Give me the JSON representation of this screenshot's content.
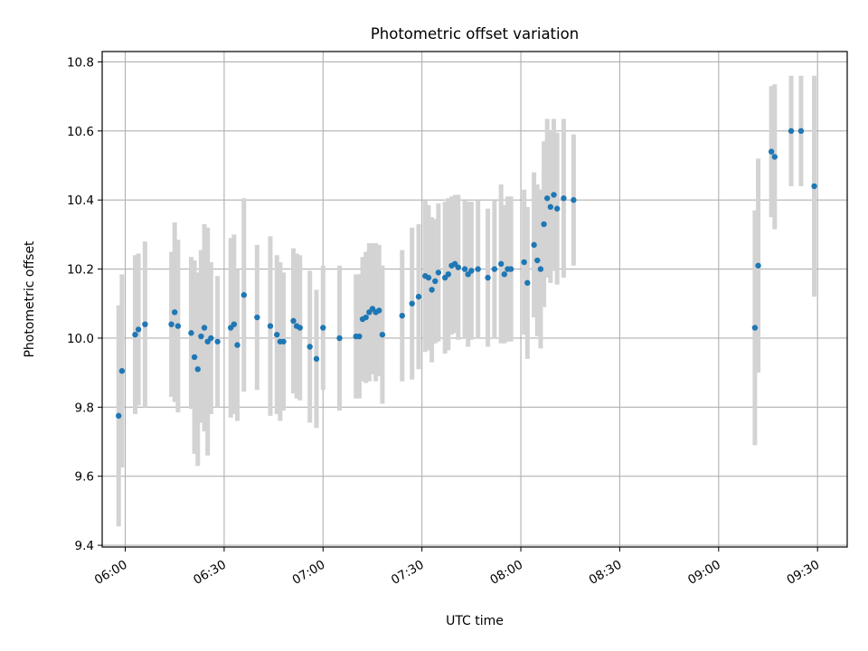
{
  "chart_data": {
    "type": "scatter",
    "title": "Photometric offset variation",
    "xlabel": "UTC time",
    "ylabel": "Photometric offset",
    "grid": true,
    "x_axis": {
      "range": [
        "05:53",
        "09:39"
      ],
      "ticks": [
        "06:00",
        "06:30",
        "07:00",
        "07:30",
        "08:00",
        "08:30",
        "09:00",
        "09:30"
      ]
    },
    "y_axis": {
      "range": [
        9.395,
        10.83
      ],
      "ticks": [
        9.4,
        9.6,
        9.8,
        10.0,
        10.2,
        10.4,
        10.6,
        10.8
      ],
      "tick_labels": [
        "9.4",
        "9.6",
        "9.8",
        "10.0",
        "10.2",
        "10.4",
        "10.6",
        "10.8"
      ]
    },
    "colors": {
      "points": "#1f77b4",
      "errorbars": "#d3d3d3",
      "grid": "#b0b0b0"
    },
    "series": [
      {
        "points": [
          {
            "x": "05:58:00",
            "y": 9.775,
            "err": 0.32
          },
          {
            "x": "05:59:00",
            "y": 9.905,
            "err": 0.28
          },
          {
            "x": "06:03:00",
            "y": 10.01,
            "err": 0.23
          },
          {
            "x": "06:04:00",
            "y": 10.025,
            "err": 0.22
          },
          {
            "x": "06:06:00",
            "y": 10.04,
            "err": 0.24
          },
          {
            "x": "06:14:00",
            "y": 10.04,
            "err": 0.21
          },
          {
            "x": "06:15:00",
            "y": 10.075,
            "err": 0.26
          },
          {
            "x": "06:16:00",
            "y": 10.035,
            "err": 0.25
          },
          {
            "x": "06:20:00",
            "y": 10.015,
            "err": 0.22
          },
          {
            "x": "06:21:00",
            "y": 9.945,
            "err": 0.28
          },
          {
            "x": "06:22:00",
            "y": 9.91,
            "err": 0.28
          },
          {
            "x": "06:23:00",
            "y": 10.005,
            "err": 0.25
          },
          {
            "x": "06:24:00",
            "y": 10.03,
            "err": 0.3
          },
          {
            "x": "06:25:00",
            "y": 9.99,
            "err": 0.33
          },
          {
            "x": "06:26:00",
            "y": 10.0,
            "err": 0.22
          },
          {
            "x": "06:28:00",
            "y": 9.99,
            "err": 0.19
          },
          {
            "x": "06:32:00",
            "y": 10.03,
            "err": 0.26
          },
          {
            "x": "06:33:00",
            "y": 10.04,
            "err": 0.26
          },
          {
            "x": "06:34:00",
            "y": 9.98,
            "err": 0.22
          },
          {
            "x": "06:36:00",
            "y": 10.125,
            "err": 0.28
          },
          {
            "x": "06:40:00",
            "y": 10.06,
            "err": 0.21
          },
          {
            "x": "06:44:00",
            "y": 10.035,
            "err": 0.26
          },
          {
            "x": "06:46:00",
            "y": 10.01,
            "err": 0.23
          },
          {
            "x": "06:47:00",
            "y": 9.99,
            "err": 0.23
          },
          {
            "x": "06:48:00",
            "y": 9.99,
            "err": 0.2
          },
          {
            "x": "06:51:00",
            "y": 10.05,
            "err": 0.21
          },
          {
            "x": "06:52:00",
            "y": 10.035,
            "err": 0.21
          },
          {
            "x": "06:53:00",
            "y": 10.03,
            "err": 0.21
          },
          {
            "x": "06:56:00",
            "y": 9.975,
            "err": 0.22
          },
          {
            "x": "06:58:00",
            "y": 9.94,
            "err": 0.2
          },
          {
            "x": "07:00:00",
            "y": 10.03,
            "err": 0.18
          },
          {
            "x": "07:05:00",
            "y": 10.0,
            "err": 0.21
          },
          {
            "x": "07:10:00",
            "y": 10.005,
            "err": 0.18
          },
          {
            "x": "07:11:00",
            "y": 10.005,
            "err": 0.18
          },
          {
            "x": "07:12:00",
            "y": 10.055,
            "err": 0.18
          },
          {
            "x": "07:13:00",
            "y": 10.06,
            "err": 0.19
          },
          {
            "x": "07:14:00",
            "y": 10.075,
            "err": 0.2
          },
          {
            "x": "07:15:00",
            "y": 10.085,
            "err": 0.19
          },
          {
            "x": "07:16:00",
            "y": 10.075,
            "err": 0.2
          },
          {
            "x": "07:17:00",
            "y": 10.08,
            "err": 0.19
          },
          {
            "x": "07:18:00",
            "y": 10.01,
            "err": 0.2
          },
          {
            "x": "07:24:00",
            "y": 10.065,
            "err": 0.19
          },
          {
            "x": "07:27:00",
            "y": 10.1,
            "err": 0.22
          },
          {
            "x": "07:29:00",
            "y": 10.12,
            "err": 0.21
          },
          {
            "x": "07:31:00",
            "y": 10.18,
            "err": 0.22
          },
          {
            "x": "07:32:00",
            "y": 10.175,
            "err": 0.21
          },
          {
            "x": "07:33:00",
            "y": 10.14,
            "err": 0.21
          },
          {
            "x": "07:34:00",
            "y": 10.165,
            "err": 0.18
          },
          {
            "x": "07:35:00",
            "y": 10.19,
            "err": 0.2
          },
          {
            "x": "07:37:00",
            "y": 10.175,
            "err": 0.22
          },
          {
            "x": "07:38:00",
            "y": 10.185,
            "err": 0.22
          },
          {
            "x": "07:39:00",
            "y": 10.21,
            "err": 0.2
          },
          {
            "x": "07:40:00",
            "y": 10.215,
            "err": 0.2
          },
          {
            "x": "07:41:00",
            "y": 10.205,
            "err": 0.21
          },
          {
            "x": "07:43:00",
            "y": 10.2,
            "err": 0.2
          },
          {
            "x": "07:44:00",
            "y": 10.185,
            "err": 0.21
          },
          {
            "x": "07:45:00",
            "y": 10.195,
            "err": 0.2
          },
          {
            "x": "07:47:00",
            "y": 10.2,
            "err": 0.2
          },
          {
            "x": "07:50:00",
            "y": 10.175,
            "err": 0.2
          },
          {
            "x": "07:52:00",
            "y": 10.2,
            "err": 0.2
          },
          {
            "x": "07:54:00",
            "y": 10.215,
            "err": 0.23
          },
          {
            "x": "07:55:00",
            "y": 10.185,
            "err": 0.2
          },
          {
            "x": "07:56:00",
            "y": 10.2,
            "err": 0.21
          },
          {
            "x": "07:57:00",
            "y": 10.2,
            "err": 0.21
          },
          {
            "x": "08:01:00",
            "y": 10.22,
            "err": 0.21
          },
          {
            "x": "08:02:00",
            "y": 10.16,
            "err": 0.22
          },
          {
            "x": "08:04:00",
            "y": 10.27,
            "err": 0.21
          },
          {
            "x": "08:05:00",
            "y": 10.225,
            "err": 0.22
          },
          {
            "x": "08:06:00",
            "y": 10.2,
            "err": 0.23
          },
          {
            "x": "08:07:00",
            "y": 10.33,
            "err": 0.24
          },
          {
            "x": "08:08:00",
            "y": 10.405,
            "err": 0.23
          },
          {
            "x": "08:09:00",
            "y": 10.38,
            "err": 0.22
          },
          {
            "x": "08:10:00",
            "y": 10.415,
            "err": 0.22
          },
          {
            "x": "08:11:00",
            "y": 10.375,
            "err": 0.22
          },
          {
            "x": "08:13:00",
            "y": 10.405,
            "err": 0.23
          },
          {
            "x": "08:16:00",
            "y": 10.4,
            "err": 0.19
          },
          {
            "x": "09:11:00",
            "y": 10.03,
            "err": 0.34
          },
          {
            "x": "09:12:00",
            "y": 10.21,
            "err": 0.31
          },
          {
            "x": "09:16:00",
            "y": 10.54,
            "err": 0.19
          },
          {
            "x": "09:17:00",
            "y": 10.525,
            "err": 0.21
          },
          {
            "x": "09:22:00",
            "y": 10.6,
            "err": 0.16
          },
          {
            "x": "09:25:00",
            "y": 10.6,
            "err": 0.16
          },
          {
            "x": "09:29:00",
            "y": 10.44,
            "err": 0.32
          }
        ]
      }
    ]
  }
}
